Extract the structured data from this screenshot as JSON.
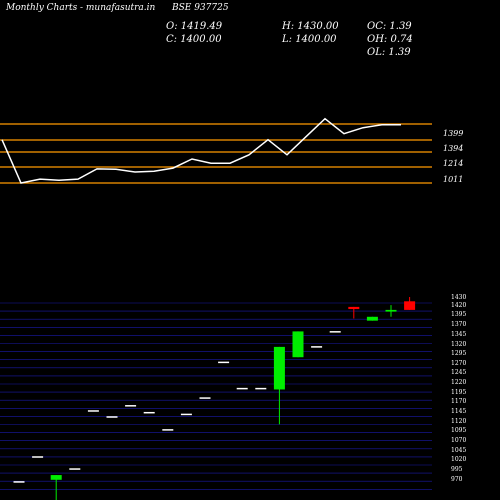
{
  "header": {
    "site_title": "Monthly Charts",
    "site_name": "- munafasutra.in",
    "symbol": "BSE 937725",
    "open": "O: 1419.49",
    "high": "H: 1430.00",
    "oc": "OC: 1.39",
    "close": "C: 1400.00",
    "low": "L: 1400.00",
    "oh": "OH: 0.74",
    "ol": "OL: 1.39"
  },
  "colors": {
    "background": "#000000",
    "level_line": "#ff9900",
    "price_line": "#ffffff",
    "grid_line": "#1a1aa8",
    "bull_candle": "#00ee00",
    "bear_candle": "#ff0000",
    "flat_candle": "#ffffff"
  },
  "chart_data": [
    {
      "type": "line",
      "levels": [
        {
          "label": "1399",
          "value": 1399
        },
        {
          "label": "1394",
          "value": 1394
        },
        {
          "label": "1214",
          "value": 1214
        },
        {
          "label": "1011",
          "value": 1011
        }
      ],
      "x": [
        1,
        2,
        3,
        4,
        5,
        6,
        7,
        8,
        9,
        10,
        11,
        12,
        13,
        14,
        15,
        16,
        17,
        18,
        19,
        20,
        21,
        22
      ],
      "y": [
        1400,
        1011,
        1060,
        1045,
        1060,
        1190,
        1185,
        1150,
        1160,
        1200,
        1310,
        1260,
        1260,
        1360,
        1400,
        1360,
        1410,
        1470,
        1420,
        1440,
        1450,
        1450
      ]
    },
    {
      "type": "candlestick",
      "ytick_labels": [
        "1430",
        "1420",
        "1395",
        "1370",
        "1345",
        "1320",
        "1295",
        "1270",
        "1245",
        "1220",
        "1195",
        "1170",
        "1145",
        "1120",
        "1095",
        "1070",
        "1045",
        "1020",
        "995",
        "970"
      ],
      "candles": [
        {
          "open": 1000,
          "high": 1000,
          "low": 1000,
          "close": 1000
        },
        {
          "open": 1058,
          "high": 1058,
          "low": 1058,
          "close": 1058
        },
        {
          "open": 1005,
          "high": 1016,
          "low": 955,
          "close": 1016
        },
        {
          "open": 1030,
          "high": 1030,
          "low": 1030,
          "close": 1030
        },
        {
          "open": 1165,
          "high": 1165,
          "low": 1165,
          "close": 1165
        },
        {
          "open": 1151,
          "high": 1151,
          "low": 1151,
          "close": 1151
        },
        {
          "open": 1177,
          "high": 1177,
          "low": 1177,
          "close": 1177
        },
        {
          "open": 1161,
          "high": 1161,
          "low": 1161,
          "close": 1161
        },
        {
          "open": 1121,
          "high": 1121,
          "low": 1121,
          "close": 1121
        },
        {
          "open": 1157,
          "high": 1157,
          "low": 1157,
          "close": 1157
        },
        {
          "open": 1195,
          "high": 1195,
          "low": 1195,
          "close": 1195
        },
        {
          "open": 1278,
          "high": 1278,
          "low": 1278,
          "close": 1278
        },
        {
          "open": 1217,
          "high": 1217,
          "low": 1217,
          "close": 1217
        },
        {
          "open": 1217,
          "high": 1217,
          "low": 1217,
          "close": 1217
        },
        {
          "open": 1215,
          "high": 1314,
          "low": 1134,
          "close": 1314
        },
        {
          "open": 1290,
          "high": 1350,
          "low": 1290,
          "close": 1350
        },
        {
          "open": 1314,
          "high": 1314,
          "low": 1314,
          "close": 1314
        },
        {
          "open": 1349,
          "high": 1349,
          "low": 1349,
          "close": 1349
        },
        {
          "open": 1407,
          "high": 1407,
          "low": 1380,
          "close": 1402
        },
        {
          "open": 1375,
          "high": 1384,
          "low": 1375,
          "close": 1384
        },
        {
          "open": 1396,
          "high": 1411,
          "low": 1384,
          "close": 1400
        },
        {
          "open": 1420,
          "high": 1430,
          "low": 1400,
          "close": 1400
        }
      ]
    }
  ]
}
